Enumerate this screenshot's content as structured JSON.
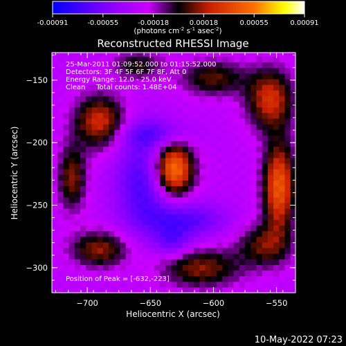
{
  "colorbar": {
    "ticks": [
      "-0.00091",
      "-0.00055",
      "-0.00018",
      "0.00018",
      "0.00055",
      "0.00091"
    ],
    "unit_parts": [
      "(photons cm",
      "-2",
      " s",
      "-1",
      " asec",
      "-2",
      ")"
    ]
  },
  "chart_data": {
    "type": "heatmap",
    "title": "Reconstructed RHESSI Image",
    "xlabel": "Heliocentric X (arcsec)",
    "ylabel": "Heliocentric Y (arcsec)",
    "xlim": [
      -728,
      -535
    ],
    "ylim": [
      -320,
      -128
    ],
    "xticks": [
      -700,
      -650,
      -600,
      -550
    ],
    "xtick_labels": [
      "−700",
      "−650",
      "−600",
      "−550"
    ],
    "yticks": [
      -150,
      -200,
      -250,
      -300
    ],
    "ytick_labels": [
      "−150",
      "−200",
      "−250",
      "−300"
    ],
    "color_range": [
      -0.00091,
      0.00091
    ],
    "colormap": [
      "#0000ff",
      "#7a00ff",
      "#cc00ff",
      "#000000",
      "#c81e00",
      "#ff7000",
      "#ffff00",
      "#ffffff"
    ],
    "annotations": [
      "25-Mar-2011 01:09:52.000 to 01:15:52.000",
      "Detectors: 3F 4F 5F 6F 7F 8F, Att 0",
      "Energy Range: 12.0 - 25.0 keV",
      "Clean     Total counts: 1.48E+04"
    ],
    "peak_label": "Position of Peak = [-632,-223]",
    "peak_position": [
      -632,
      -223
    ],
    "sources": [
      {
        "x": -632,
        "y": -221,
        "sx": 11,
        "sy": 15,
        "amp": 1.0
      },
      {
        "x": -548,
        "y": -235,
        "sx": 9,
        "sy": 25,
        "amp": 0.8
      },
      {
        "x": -555,
        "y": -165,
        "sx": 13,
        "sy": 17,
        "amp": 0.62
      },
      {
        "x": -690,
        "y": -183,
        "sx": 14,
        "sy": 15,
        "amp": 0.62
      },
      {
        "x": -712,
        "y": -228,
        "sx": 8,
        "sy": 18,
        "amp": 0.48
      },
      {
        "x": -690,
        "y": -285,
        "sx": 16,
        "sy": 10,
        "amp": 0.5
      },
      {
        "x": -610,
        "y": -300,
        "sx": 22,
        "sy": 11,
        "amp": 0.48
      },
      {
        "x": -560,
        "y": -282,
        "sx": 15,
        "sy": 12,
        "amp": 0.42
      },
      {
        "x": -600,
        "y": -148,
        "sx": 18,
        "sy": 10,
        "amp": 0.42
      },
      {
        "x": -660,
        "y": -138,
        "sx": 14,
        "sy": 8,
        "amp": 0.35
      }
    ],
    "negative_regions": [
      {
        "x": -655,
        "y": -232,
        "sx": 16,
        "sy": 28,
        "amp": -0.45
      },
      {
        "x": -622,
        "y": -262,
        "sx": 22,
        "sy": 10,
        "amp": -0.4
      },
      {
        "x": -648,
        "y": -193,
        "sx": 20,
        "sy": 8,
        "amp": -0.3
      },
      {
        "x": -632,
        "y": -280,
        "sx": 10,
        "sy": 8,
        "amp": -0.3
      }
    ]
  },
  "timestamp": "10-May-2022 07:23"
}
